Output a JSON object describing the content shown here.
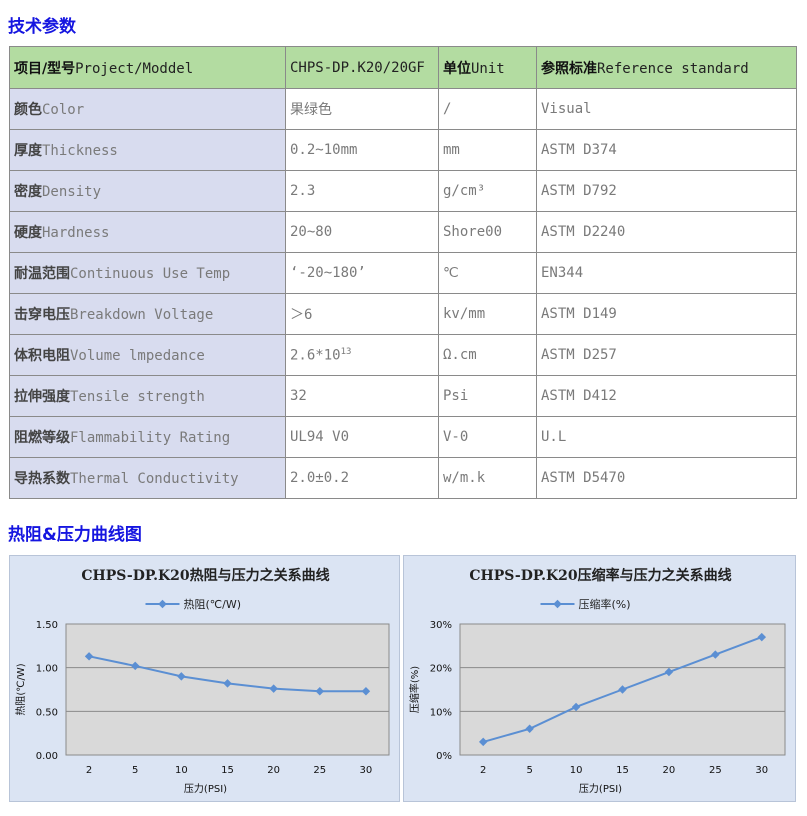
{
  "spec_section": {
    "title": "技术参数"
  },
  "table": {
    "header": [
      {
        "zh": "项目/型号",
        "en": "Project/Moddel"
      },
      {
        "zh": "",
        "en": "CHPS-DP.K20/20GF"
      },
      {
        "zh": "单位",
        "en": "Unit"
      },
      {
        "zh": "参照标准",
        "en": "Reference standard"
      }
    ],
    "rows": [
      {
        "zh": "颜色",
        "en": "Color",
        "value": "果绿色",
        "unit": "/",
        "standard": "Visual"
      },
      {
        "zh": "厚度",
        "en": "Thickness",
        "value": "0.2~10mm",
        "unit": "mm",
        "standard": "ASTM D374"
      },
      {
        "zh": "密度",
        "en": "Density",
        "value": "2.3",
        "unit": "g/cm³",
        "standard": "ASTM D792"
      },
      {
        "zh": "硬度",
        "en": "Hardness",
        "value": "20~80",
        "unit": "Shore00",
        "standard": "ASTM D2240"
      },
      {
        "zh": "耐温范围",
        "en": "Continuous Use Temp",
        "value": "‘-20~180’",
        "unit": "℃",
        "standard": "EN344"
      },
      {
        "zh": "击穿电压",
        "en": "Breakdown Voltage",
        "value": "＞6",
        "unit": "kv/mm",
        "standard": "ASTM D149"
      },
      {
        "zh": "体积电阻",
        "en": "Volume lmpedance",
        "value": "2.6*10",
        "value_sup": "13",
        "unit": "Ω.cm",
        "standard": "ASTM D257"
      },
      {
        "zh": "拉伸强度",
        "en": "Tensile strength",
        "value": "32",
        "unit": "Psi",
        "standard": "ASTM D412"
      },
      {
        "zh": "阻燃等级",
        "en": "Flammability Rating",
        "value": "UL94 V0",
        "unit": "V-0",
        "standard": "U.L"
      },
      {
        "zh": "导热系数",
        "en": "Thermal Conductivity",
        "value": "2.0±0.2",
        "unit": "w/m.k",
        "standard": "ASTM D5470"
      }
    ]
  },
  "charts_section": {
    "title": "热阻&压力曲线图"
  },
  "colors": {
    "line": "#5b8fd3",
    "plot_bg": "#d9d9d9",
    "panel_bg": "#dbe4f3",
    "title_blue": "#1515e0"
  },
  "chart_data": [
    {
      "type": "line",
      "title": "CHPS-DP.K20热阻与压力之关系曲线",
      "categories": [
        "2",
        "5",
        "10",
        "15",
        "20",
        "25",
        "30"
      ],
      "series": [
        {
          "name": "热阻(℃/W)",
          "values": [
            1.13,
            1.02,
            0.9,
            0.82,
            0.76,
            0.73,
            0.73
          ]
        }
      ],
      "ylim": [
        0,
        1.5
      ],
      "yticks": [
        "0.00",
        "0.50",
        "1.00",
        "1.50"
      ],
      "ylabel": "热阻(℃/W)",
      "xlabel": "压力(PSI)",
      "grid": true,
      "legend": "top"
    },
    {
      "type": "line",
      "title": "CHPS-DP.K20压缩率与压力之关系曲线",
      "categories": [
        "2",
        "5",
        "10",
        "15",
        "20",
        "25",
        "30"
      ],
      "series": [
        {
          "name": "压缩率(%)",
          "values": [
            3,
            6,
            11,
            15,
            19,
            23,
            27
          ]
        }
      ],
      "ylim": [
        0,
        30
      ],
      "yticks": [
        "0%",
        "10%",
        "20%",
        "30%"
      ],
      "ylabel": "压缩率(%)",
      "xlabel": "压力(PSI)",
      "grid": true,
      "legend": "top"
    }
  ]
}
